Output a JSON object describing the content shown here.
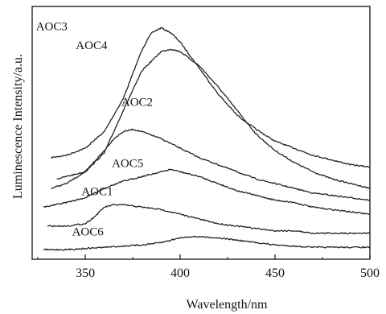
{
  "chart_data": {
    "type": "line",
    "title": "",
    "xlabel": "Wavelength/nm",
    "ylabel": "Luminescence Intensity/a.u.",
    "xlim": [
      322,
      500
    ],
    "ylim": [
      0,
      100
    ],
    "x_ticks": [
      350,
      400,
      450,
      500
    ],
    "y_ticks_shown": false,
    "grid": false,
    "legend": "inline labels",
    "series": [
      {
        "name": "AOC3",
        "label_at": [
          324,
          94
        ],
        "x": [
          332,
          340,
          350,
          360,
          370,
          380,
          385,
          390,
          395,
          400,
          410,
          420,
          430,
          440,
          450,
          460,
          470,
          480,
          490,
          500
        ],
        "y": [
          40,
          41,
          44,
          51,
          65,
          86,
          93,
          95,
          93,
          89,
          78,
          67,
          58,
          52,
          47,
          44,
          41,
          39,
          37,
          36
        ]
      },
      {
        "name": "AOC4",
        "label_at": [
          345,
          86
        ],
        "x": [
          335,
          340,
          350,
          360,
          370,
          380,
          390,
          395,
          400,
          410,
          420,
          430,
          440,
          450,
          460,
          470,
          480,
          490,
          500
        ],
        "y": [
          31,
          32,
          34,
          42,
          60,
          77,
          85,
          86,
          85,
          79,
          70,
          60,
          50,
          43,
          38,
          34,
          31,
          29,
          27
        ]
      },
      {
        "name": "AOC2",
        "label_at": [
          369,
          62
        ],
        "x": [
          332,
          340,
          350,
          360,
          365,
          370,
          375,
          380,
          390,
          400,
          410,
          420,
          430,
          440,
          450,
          460,
          470,
          480,
          490,
          500
        ],
        "y": [
          27,
          29,
          34,
          43,
          48,
          51,
          52,
          51,
          48,
          44,
          40,
          37,
          34,
          31,
          29,
          27,
          25,
          24,
          23,
          22
        ]
      },
      {
        "name": "AOC5",
        "label_at": [
          364,
          36
        ],
        "x": [
          328,
          340,
          350,
          360,
          370,
          380,
          390,
          395,
          400,
          410,
          420,
          430,
          440,
          450,
          460,
          470,
          480,
          490,
          500
        ],
        "y": [
          19,
          21,
          23,
          27,
          30,
          32,
          34,
          35,
          34,
          32,
          29,
          26,
          24,
          22,
          21,
          19,
          18,
          17,
          16
        ]
      },
      {
        "name": "AOC1",
        "label_at": [
          348,
          24
        ],
        "x": [
          330,
          340,
          350,
          355,
          360,
          365,
          370,
          380,
          390,
          400,
          410,
          420,
          430,
          440,
          450,
          460,
          470,
          480,
          490,
          500
        ],
        "y": [
          11,
          11,
          12,
          15,
          19,
          20,
          20,
          19,
          18,
          16,
          14,
          12,
          11,
          10,
          9,
          9,
          8,
          8,
          8,
          8
        ]
      },
      {
        "name": "AOC6",
        "label_at": [
          343,
          7
        ],
        "x": [
          328,
          340,
          350,
          360,
          370,
          380,
          390,
          400,
          405,
          410,
          420,
          430,
          440,
          450,
          460,
          470,
          480,
          490,
          500
        ],
        "y": [
          1,
          1,
          1.5,
          2,
          2.5,
          3,
          4,
          6,
          6.5,
          6.5,
          6,
          5,
          4,
          3,
          2.5,
          2,
          2,
          2,
          2
        ]
      }
    ]
  }
}
